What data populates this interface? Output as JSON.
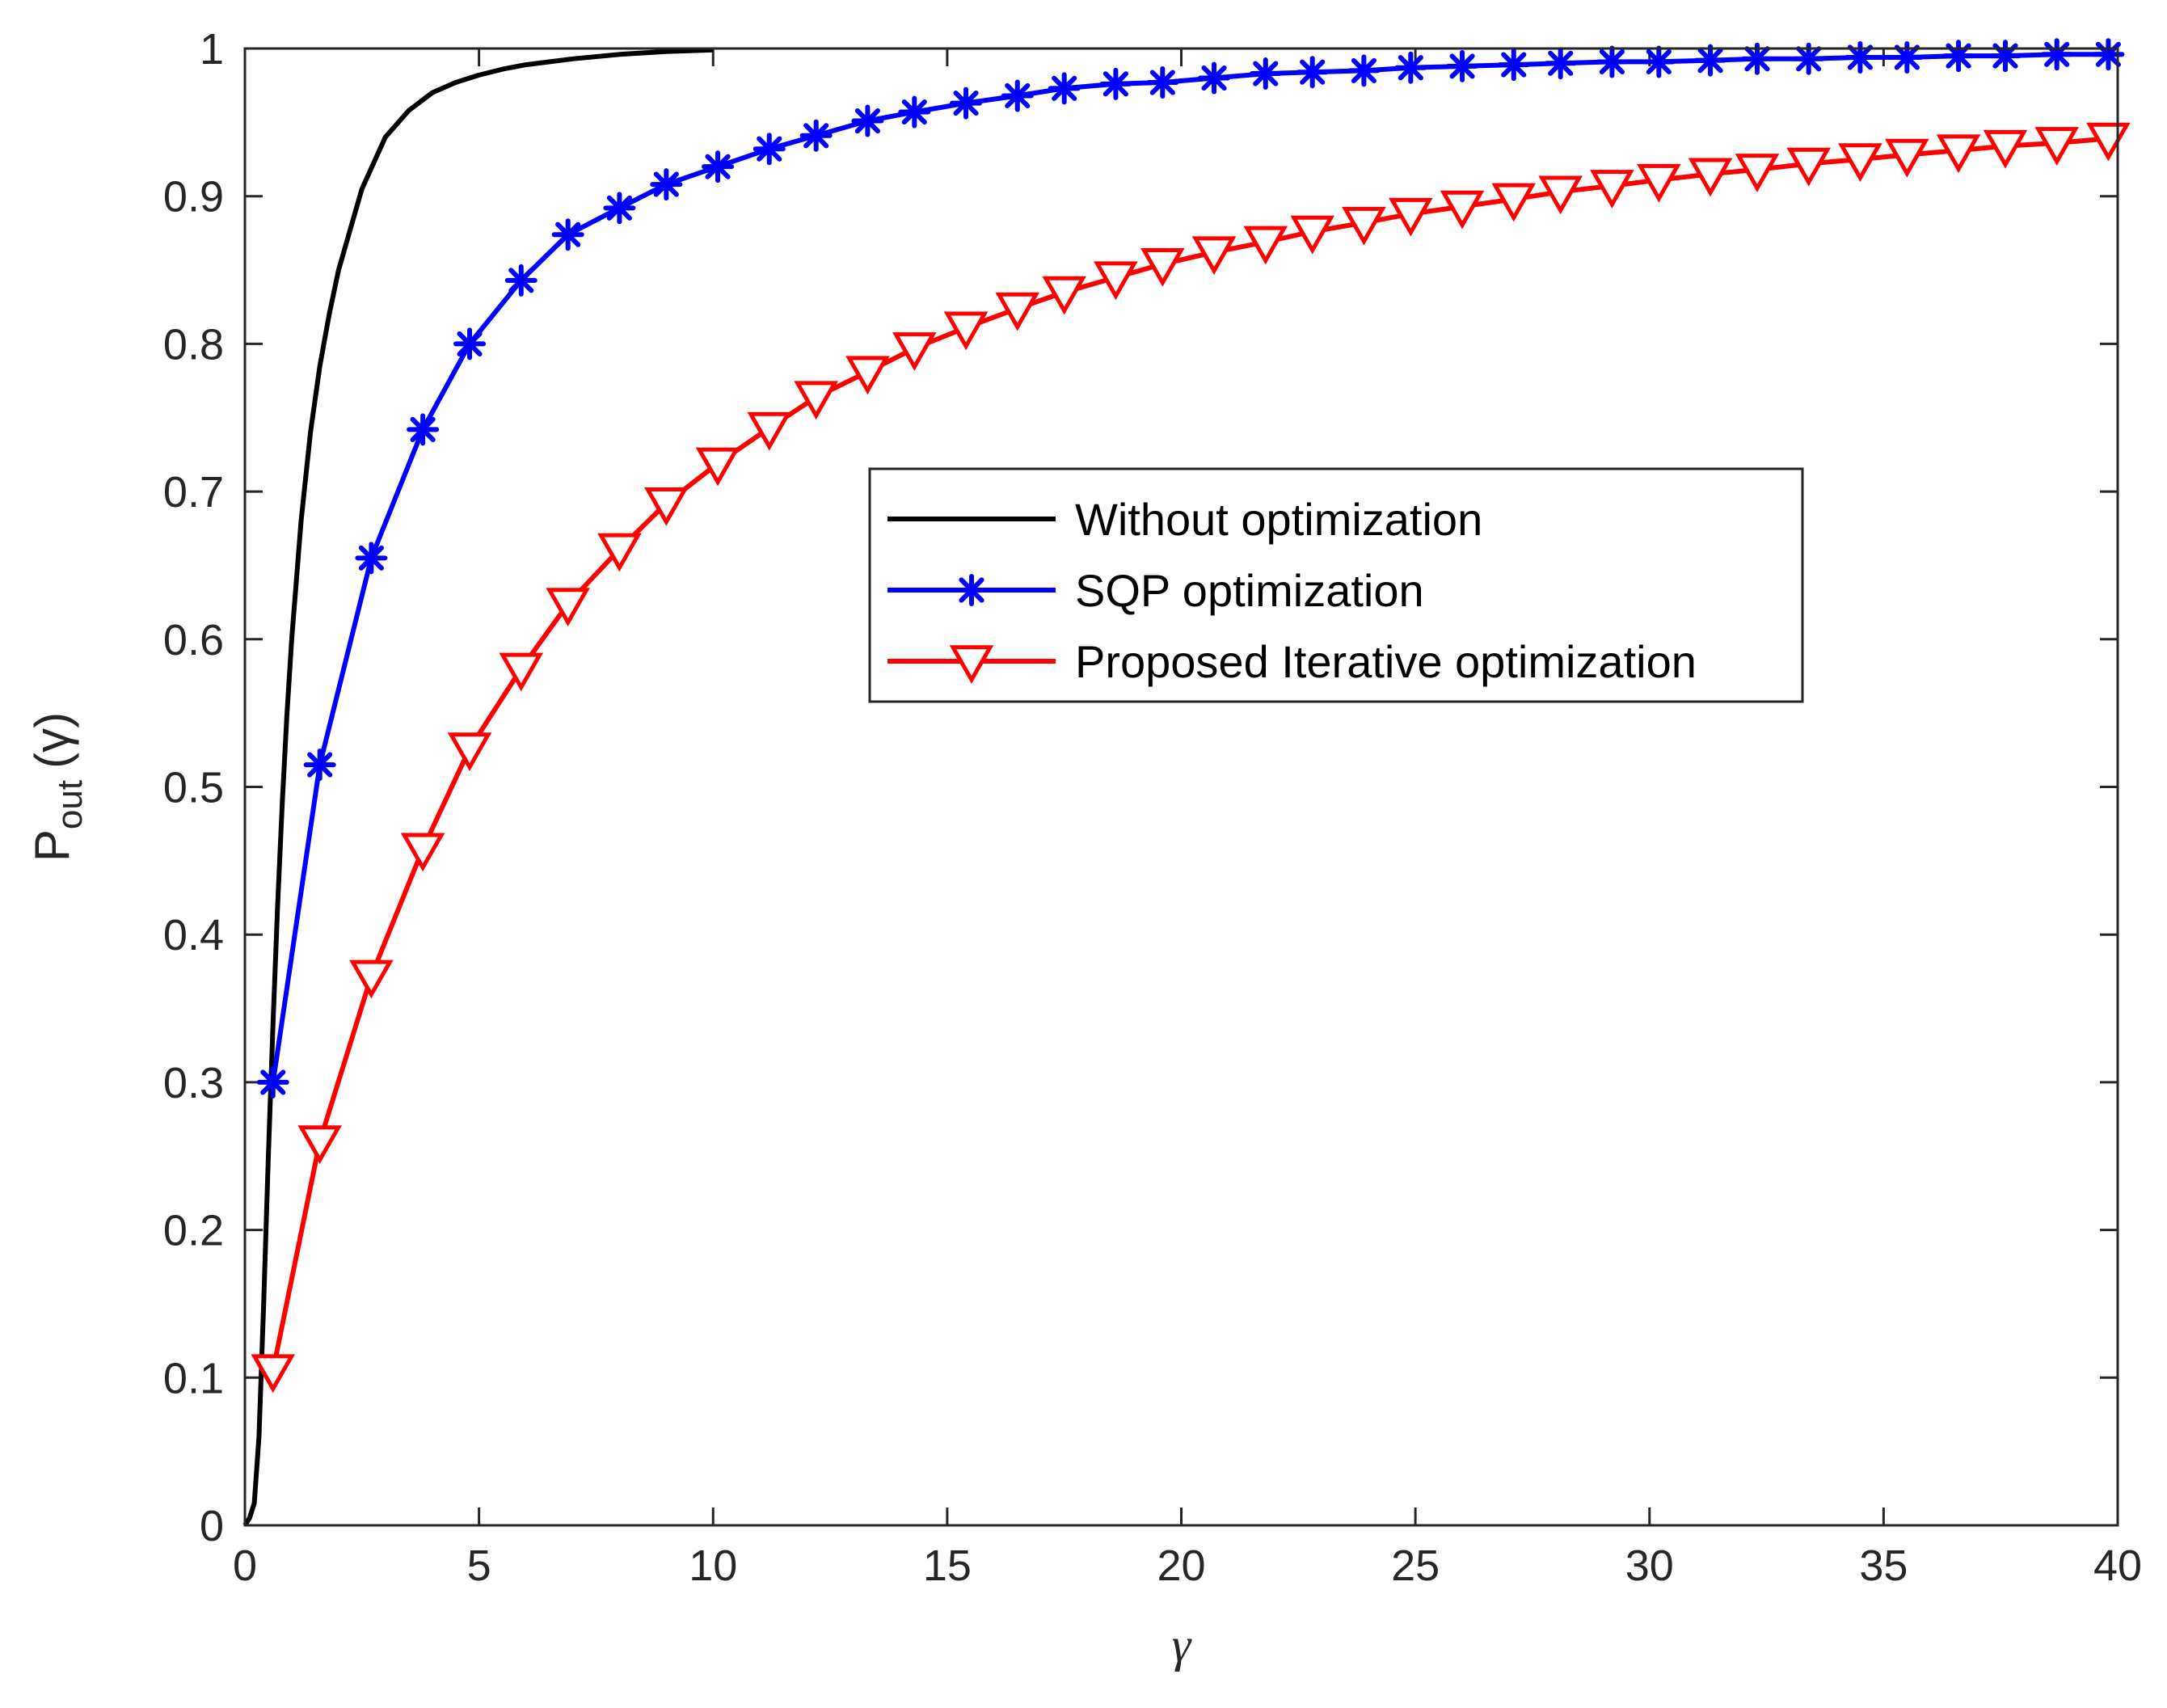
{
  "chart_data": {
    "type": "line",
    "title": "",
    "xlabel": "γ",
    "ylabel": {
      "main": "P",
      "subscript": "out",
      "argument": "(γ)"
    },
    "xlim": [
      0,
      40
    ],
    "ylim": [
      0,
      1
    ],
    "xticks": [
      0,
      5,
      10,
      15,
      20,
      25,
      30,
      35,
      40
    ],
    "xtick_labels": [
      "0",
      "5",
      "10",
      "15",
      "20",
      "25",
      "30",
      "35",
      "40"
    ],
    "yticks": [
      0,
      0.1,
      0.2,
      0.3,
      0.4,
      0.5,
      0.6,
      0.7,
      0.8,
      0.9,
      1
    ],
    "ytick_labels": [
      "0",
      "0.1",
      "0.2",
      "0.3",
      "0.4",
      "0.5",
      "0.6",
      "0.7",
      "0.8",
      "0.9",
      "1"
    ],
    "grid": false,
    "legend_position": "center-right",
    "series": [
      {
        "name": "Without optimization",
        "color": "#000000",
        "marker": "none",
        "x": [
          0,
          0.1,
          0.2,
          0.3,
          0.4,
          0.5,
          0.6,
          0.7,
          0.8,
          0.9,
          1.0,
          1.2,
          1.4,
          1.6,
          1.8,
          2.0,
          2.5,
          3.0,
          3.5,
          4.0,
          4.5,
          5.0,
          5.5,
          6.0,
          7.0,
          8.0,
          9.0,
          10.0
        ],
        "y": [
          0,
          0.005,
          0.015,
          0.06,
          0.15,
          0.25,
          0.34,
          0.42,
          0.49,
          0.55,
          0.6,
          0.68,
          0.74,
          0.785,
          0.82,
          0.85,
          0.905,
          0.94,
          0.958,
          0.97,
          0.977,
          0.982,
          0.986,
          0.989,
          0.993,
          0.996,
          0.998,
          0.999
        ]
      },
      {
        "name": "SQP optimization",
        "color": "#0000ff",
        "marker": "asterisk",
        "x": [
          0.6,
          1.6,
          2.7,
          3.8,
          4.8,
          5.9,
          6.9,
          8.0,
          9.0,
          10.1,
          11.2,
          12.2,
          13.3,
          14.3,
          15.4,
          16.5,
          17.5,
          18.6,
          19.6,
          20.7,
          21.8,
          22.8,
          23.9,
          24.9,
          26.0,
          27.1,
          28.1,
          29.2,
          30.2,
          31.3,
          32.3,
          33.4,
          34.5,
          35.5,
          36.6,
          37.6,
          38.7,
          39.8
        ],
        "y": [
          0.3,
          0.515,
          0.655,
          0.742,
          0.8,
          0.843,
          0.874,
          0.892,
          0.908,
          0.92,
          0.932,
          0.941,
          0.951,
          0.957,
          0.963,
          0.968,
          0.973,
          0.976,
          0.977,
          0.98,
          0.983,
          0.984,
          0.985,
          0.987,
          0.988,
          0.989,
          0.99,
          0.991,
          0.991,
          0.992,
          0.993,
          0.993,
          0.994,
          0.994,
          0.995,
          0.995,
          0.996,
          0.996
        ]
      },
      {
        "name": "Proposed Iterative optimization",
        "color": "#ff0000",
        "marker": "triangle-down",
        "x": [
          0.6,
          1.6,
          2.7,
          3.8,
          4.8,
          5.9,
          6.9,
          8.0,
          9.0,
          10.1,
          11.2,
          12.2,
          13.3,
          14.3,
          15.4,
          16.5,
          17.5,
          18.6,
          19.6,
          20.7,
          21.8,
          22.8,
          23.9,
          24.9,
          26.0,
          27.1,
          28.1,
          29.2,
          30.2,
          31.3,
          32.3,
          33.4,
          34.5,
          35.5,
          36.6,
          37.6,
          38.7,
          39.8
        ],
        "y": [
          0.105,
          0.26,
          0.372,
          0.458,
          0.526,
          0.58,
          0.624,
          0.661,
          0.692,
          0.719,
          0.743,
          0.764,
          0.781,
          0.797,
          0.811,
          0.824,
          0.835,
          0.845,
          0.854,
          0.862,
          0.869,
          0.876,
          0.882,
          0.888,
          0.893,
          0.898,
          0.903,
          0.907,
          0.911,
          0.915,
          0.918,
          0.922,
          0.925,
          0.928,
          0.931,
          0.934,
          0.936,
          0.939
        ]
      }
    ]
  }
}
